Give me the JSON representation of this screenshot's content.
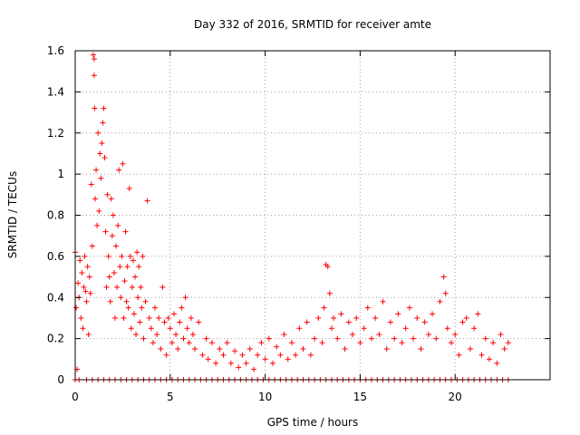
{
  "chart_data": {
    "type": "scatter",
    "title": "Day 332 of 2016, SRMTID for receiver amte",
    "xlabel": "GPS time / hours",
    "ylabel": "SRMTID / TECUs",
    "xlim": [
      0,
      25
    ],
    "ylim": [
      0,
      1.6
    ],
    "x_ticks": [
      0,
      5,
      10,
      15,
      20
    ],
    "x_tick_labels": [
      "0",
      "5",
      "10",
      "15",
      "20"
    ],
    "y_ticks": [
      0,
      0.2,
      0.4,
      0.6,
      0.8,
      1.0,
      1.2,
      1.4,
      1.6
    ],
    "y_tick_labels": [
      "0",
      "0.2",
      "0.4",
      "0.6",
      "0.8",
      "1",
      "1.2",
      "1.4",
      "1.6"
    ],
    "grid": true,
    "marker": "+",
    "color": "#ff0000",
    "series": [
      {
        "name": "SRMTID",
        "points": [
          [
            0.0,
            0.62
          ],
          [
            0.05,
            0.35
          ],
          [
            0.1,
            0.05
          ],
          [
            0.15,
            0.47
          ],
          [
            0.2,
            0.4
          ],
          [
            0.25,
            0.58
          ],
          [
            0.3,
            0.3
          ],
          [
            0.35,
            0.52
          ],
          [
            0.4,
            0.25
          ],
          [
            0.45,
            0.45
          ],
          [
            0.5,
            0.6
          ],
          [
            0.55,
            0.43
          ],
          [
            0.6,
            0.38
          ],
          [
            0.65,
            0.55
          ],
          [
            0.7,
            0.22
          ],
          [
            0.75,
            0.5
          ],
          [
            0.8,
            0.42
          ],
          [
            0.85,
            0.95
          ],
          [
            0.9,
            0.65
          ],
          [
            0.95,
            1.58
          ],
          [
            1.0,
            1.48
          ],
          [
            1.0,
            1.56
          ],
          [
            1.02,
            1.32
          ],
          [
            1.05,
            0.88
          ],
          [
            1.1,
            1.02
          ],
          [
            1.15,
            0.75
          ],
          [
            1.2,
            1.2
          ],
          [
            1.25,
            0.82
          ],
          [
            1.3,
            1.1
          ],
          [
            1.35,
            0.98
          ],
          [
            1.4,
            1.15
          ],
          [
            1.45,
            1.25
          ],
          [
            1.5,
            1.32
          ],
          [
            1.55,
            1.08
          ],
          [
            1.6,
            0.72
          ],
          [
            1.65,
            0.45
          ],
          [
            1.7,
            0.9
          ],
          [
            1.75,
            0.6
          ],
          [
            1.8,
            0.5
          ],
          [
            1.85,
            0.38
          ],
          [
            1.9,
            0.88
          ],
          [
            1.95,
            0.7
          ],
          [
            2.0,
            0.8
          ],
          [
            2.05,
            0.52
          ],
          [
            2.1,
            0.3
          ],
          [
            2.15,
            0.65
          ],
          [
            2.2,
            0.45
          ],
          [
            2.25,
            0.75
          ],
          [
            2.3,
            1.02
          ],
          [
            2.35,
            0.55
          ],
          [
            2.4,
            0.4
          ],
          [
            2.45,
            0.6
          ],
          [
            2.5,
            1.05
          ],
          [
            2.55,
            0.3
          ],
          [
            2.6,
            0.48
          ],
          [
            2.65,
            0.72
          ],
          [
            2.7,
            0.38
          ],
          [
            2.75,
            0.55
          ],
          [
            2.8,
            0.35
          ],
          [
            2.85,
            0.93
          ],
          [
            2.9,
            0.6
          ],
          [
            2.95,
            0.25
          ],
          [
            3.0,
            0.45
          ],
          [
            3.05,
            0.58
          ],
          [
            3.1,
            0.32
          ],
          [
            3.15,
            0.5
          ],
          [
            3.2,
            0.22
          ],
          [
            3.25,
            0.62
          ],
          [
            3.3,
            0.4
          ],
          [
            3.35,
            0.55
          ],
          [
            3.4,
            0.28
          ],
          [
            3.45,
            0.45
          ],
          [
            3.5,
            0.35
          ],
          [
            3.55,
            0.6
          ],
          [
            3.6,
            0.2
          ],
          [
            3.7,
            0.38
          ],
          [
            3.8,
            0.87
          ],
          [
            3.9,
            0.3
          ],
          [
            4.0,
            0.25
          ],
          [
            4.1,
            0.18
          ],
          [
            4.2,
            0.35
          ],
          [
            4.3,
            0.22
          ],
          [
            4.4,
            0.3
          ],
          [
            4.5,
            0.15
          ],
          [
            4.6,
            0.45
          ],
          [
            4.7,
            0.28
          ],
          [
            4.8,
            0.12
          ],
          [
            4.9,
            0.3
          ],
          [
            5.0,
            0.25
          ],
          [
            5.1,
            0.18
          ],
          [
            5.2,
            0.32
          ],
          [
            5.3,
            0.22
          ],
          [
            5.4,
            0.15
          ],
          [
            5.5,
            0.28
          ],
          [
            5.6,
            0.35
          ],
          [
            5.7,
            0.2
          ],
          [
            5.8,
            0.4
          ],
          [
            5.9,
            0.25
          ],
          [
            6.0,
            0.18
          ],
          [
            6.1,
            0.3
          ],
          [
            6.2,
            0.22
          ],
          [
            6.3,
            0.15
          ],
          [
            6.5,
            0.28
          ],
          [
            6.7,
            0.12
          ],
          [
            6.9,
            0.2
          ],
          [
            7.0,
            0.1
          ],
          [
            7.2,
            0.18
          ],
          [
            7.4,
            0.08
          ],
          [
            7.6,
            0.15
          ],
          [
            7.8,
            0.12
          ],
          [
            8.0,
            0.18
          ],
          [
            8.2,
            0.08
          ],
          [
            8.4,
            0.14
          ],
          [
            8.6,
            0.06
          ],
          [
            8.8,
            0.12
          ],
          [
            9.0,
            0.08
          ],
          [
            9.2,
            0.15
          ],
          [
            9.4,
            0.05
          ],
          [
            9.6,
            0.12
          ],
          [
            9.8,
            0.18
          ],
          [
            10.0,
            0.1
          ],
          [
            10.2,
            0.2
          ],
          [
            10.4,
            0.08
          ],
          [
            10.6,
            0.16
          ],
          [
            10.8,
            0.12
          ],
          [
            11.0,
            0.22
          ],
          [
            11.2,
            0.1
          ],
          [
            11.4,
            0.18
          ],
          [
            11.6,
            0.12
          ],
          [
            11.8,
            0.25
          ],
          [
            12.0,
            0.15
          ],
          [
            12.2,
            0.28
          ],
          [
            12.4,
            0.12
          ],
          [
            12.6,
            0.2
          ],
          [
            12.8,
            0.3
          ],
          [
            13.0,
            0.18
          ],
          [
            13.1,
            0.35
          ],
          [
            13.2,
            0.56
          ],
          [
            13.3,
            0.55
          ],
          [
            13.4,
            0.42
          ],
          [
            13.5,
            0.25
          ],
          [
            13.6,
            0.3
          ],
          [
            13.8,
            0.2
          ],
          [
            14.0,
            0.32
          ],
          [
            14.2,
            0.15
          ],
          [
            14.4,
            0.28
          ],
          [
            14.6,
            0.22
          ],
          [
            14.8,
            0.3
          ],
          [
            15.0,
            0.18
          ],
          [
            15.2,
            0.25
          ],
          [
            15.4,
            0.35
          ],
          [
            15.6,
            0.2
          ],
          [
            15.8,
            0.3
          ],
          [
            16.0,
            0.22
          ],
          [
            16.2,
            0.38
          ],
          [
            16.4,
            0.15
          ],
          [
            16.6,
            0.28
          ],
          [
            16.8,
            0.2
          ],
          [
            17.0,
            0.32
          ],
          [
            17.2,
            0.18
          ],
          [
            17.4,
            0.25
          ],
          [
            17.6,
            0.35
          ],
          [
            17.8,
            0.2
          ],
          [
            18.0,
            0.3
          ],
          [
            18.2,
            0.15
          ],
          [
            18.4,
            0.28
          ],
          [
            18.6,
            0.22
          ],
          [
            18.8,
            0.32
          ],
          [
            19.0,
            0.2
          ],
          [
            19.2,
            0.38
          ],
          [
            19.4,
            0.5
          ],
          [
            19.5,
            0.42
          ],
          [
            19.6,
            0.25
          ],
          [
            19.8,
            0.18
          ],
          [
            20.0,
            0.22
          ],
          [
            20.2,
            0.12
          ],
          [
            20.4,
            0.28
          ],
          [
            20.6,
            0.3
          ],
          [
            20.8,
            0.15
          ],
          [
            21.0,
            0.25
          ],
          [
            21.2,
            0.32
          ],
          [
            21.4,
            0.12
          ],
          [
            21.6,
            0.2
          ],
          [
            21.8,
            0.1
          ],
          [
            22.0,
            0.18
          ],
          [
            22.2,
            0.08
          ],
          [
            22.4,
            0.22
          ],
          [
            22.6,
            0.15
          ],
          [
            22.8,
            0.18
          ]
        ],
        "zero_points_x": [
          0.0,
          0.2,
          0.6,
          0.9,
          1.2,
          1.5,
          1.8,
          2.1,
          2.4,
          2.7,
          3.0,
          3.3,
          3.6,
          3.9,
          4.2,
          4.5,
          4.8,
          5.1,
          5.4,
          5.7,
          6.0,
          6.3,
          6.6,
          6.9,
          7.2,
          7.5,
          7.8,
          8.1,
          8.4,
          8.7,
          9.0,
          9.3,
          9.6,
          9.9,
          10.2,
          10.5,
          10.8,
          11.1,
          11.4,
          11.7,
          12.0,
          12.3,
          12.6,
          12.9,
          13.2,
          13.5,
          13.8,
          14.1,
          14.4,
          14.7,
          15.0,
          15.3,
          15.6,
          15.9,
          16.2,
          16.5,
          16.8,
          17.1,
          17.4,
          17.7,
          18.0,
          18.3,
          18.6,
          18.9,
          19.2,
          19.5,
          19.8,
          20.1,
          20.4,
          20.7,
          21.0,
          21.3,
          21.6,
          21.9,
          22.2,
          22.5,
          22.8
        ]
      }
    ]
  }
}
